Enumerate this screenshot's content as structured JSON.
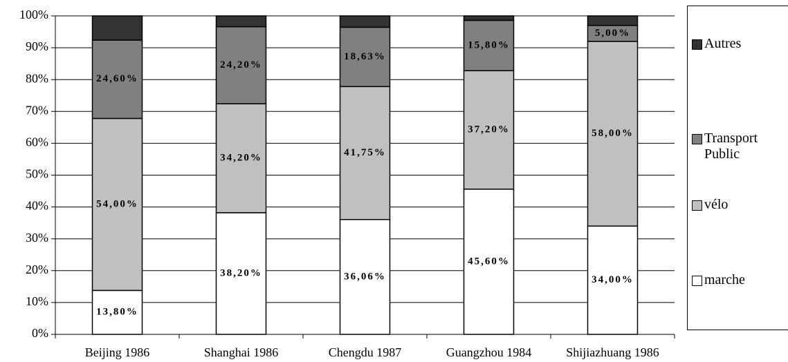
{
  "chart_data": {
    "type": "stacked_bar",
    "categories": [
      "Beijing 1986",
      "Shanghai 1986",
      "Chengdu 1987",
      "Guangzhou 1984",
      "Shijiazhuang 1986"
    ],
    "series": [
      {
        "name": "marche",
        "color": "#ffffff",
        "values": [
          13.8,
          38.2,
          36.06,
          45.6,
          34.0
        ],
        "value_labels": [
          "13,80%",
          "38,20%",
          "36,06%",
          "45,60%",
          "34,00%"
        ]
      },
      {
        "name": "vélo",
        "color": "#c0c0c0",
        "values": [
          54.0,
          34.2,
          41.75,
          37.2,
          58.0
        ],
        "value_labels": [
          "54,00%",
          "34,20%",
          "41,75%",
          "37,20%",
          "58,00%"
        ]
      },
      {
        "name": "Transport Public",
        "color": "#808080",
        "values": [
          24.6,
          24.2,
          18.63,
          15.8,
          5.0
        ],
        "value_labels": [
          "24,60%",
          "24,20%",
          "18,63%",
          "15,80%",
          "5,00%"
        ]
      },
      {
        "name": "Autres",
        "color": "#333333",
        "values": [
          7.6,
          3.4,
          3.56,
          1.4,
          3.0
        ]
      }
    ],
    "ylim": [
      0,
      100
    ],
    "yticks": [
      {
        "value": 0,
        "label": "0%"
      },
      {
        "value": 10,
        "label": "10%"
      },
      {
        "value": 20,
        "label": "20%"
      },
      {
        "value": 30,
        "label": "30%"
      },
      {
        "value": 40,
        "label": "40%"
      },
      {
        "value": 50,
        "label": "50%"
      },
      {
        "value": 60,
        "label": "60%"
      },
      {
        "value": 70,
        "label": "70%"
      },
      {
        "value": 80,
        "label": "80%"
      },
      {
        "value": 90,
        "label": "90%"
      },
      {
        "value": 100,
        "label": "100%"
      }
    ],
    "grid": true,
    "legend": "right"
  }
}
